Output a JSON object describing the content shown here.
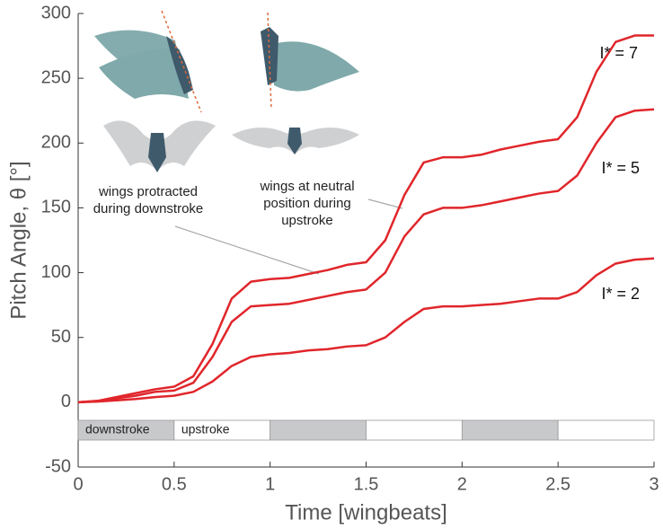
{
  "chart_data": {
    "type": "line",
    "xlabel": "Time [wingbeats]",
    "ylabel": "Pitch Angle, θ [°]",
    "xlim": [
      0,
      3
    ],
    "ylim": [
      -50,
      300
    ],
    "xticks": [
      0,
      0.5,
      1,
      1.5,
      2,
      2.5,
      3
    ],
    "yticks": [
      -50,
      0,
      50,
      100,
      150,
      200,
      250,
      300
    ],
    "x": [
      0,
      0.1,
      0.2,
      0.3,
      0.4,
      0.5,
      0.6,
      0.7,
      0.8,
      0.9,
      1.0,
      1.1,
      1.2,
      1.3,
      1.4,
      1.5,
      1.6,
      1.7,
      1.8,
      1.9,
      2.0,
      2.1,
      2.2,
      2.3,
      2.4,
      2.5,
      2.6,
      2.7,
      2.8,
      2.9,
      3.0
    ],
    "series": [
      {
        "name": "I* = 7",
        "color": "#e0262b",
        "values": [
          0,
          1,
          4,
          7,
          10,
          12,
          20,
          45,
          80,
          93,
          95,
          96,
          99,
          102,
          106,
          108,
          125,
          160,
          185,
          189,
          189,
          191,
          195,
          198,
          201,
          203,
          220,
          255,
          278,
          283,
          283
        ]
      },
      {
        "name": "I* = 5",
        "color": "#e0262b",
        "values": [
          0,
          1,
          3,
          5,
          8,
          9,
          15,
          35,
          62,
          74,
          75,
          76,
          79,
          82,
          85,
          87,
          100,
          128,
          145,
          150,
          150,
          152,
          155,
          158,
          161,
          163,
          175,
          200,
          220,
          225,
          226
        ]
      },
      {
        "name": "I* = 2",
        "color": "#e0262b",
        "values": [
          0,
          0.5,
          1.5,
          2.5,
          4,
          5,
          8,
          16,
          28,
          35,
          37,
          38,
          40,
          41,
          43,
          44,
          50,
          62,
          72,
          74,
          74,
          75,
          76,
          78,
          80,
          80,
          85,
          98,
          107,
          110,
          111
        ]
      }
    ],
    "stroke_bar": {
      "edges": [
        0,
        0.5,
        1,
        1.5,
        2,
        2.5,
        3
      ],
      "labels": [
        "downstroke",
        "upstroke",
        null,
        null,
        null,
        null
      ],
      "colors": [
        "#c8c9cb",
        "#ffffff",
        "#c8c9cb",
        "#ffffff",
        "#c8c9cb",
        "#ffffff"
      ]
    },
    "annotations": [
      {
        "lines": [
          "wings protracted",
          "during downstroke"
        ]
      },
      {
        "lines": [
          "wings at neutral",
          "position during",
          "upstroke"
        ]
      }
    ]
  }
}
